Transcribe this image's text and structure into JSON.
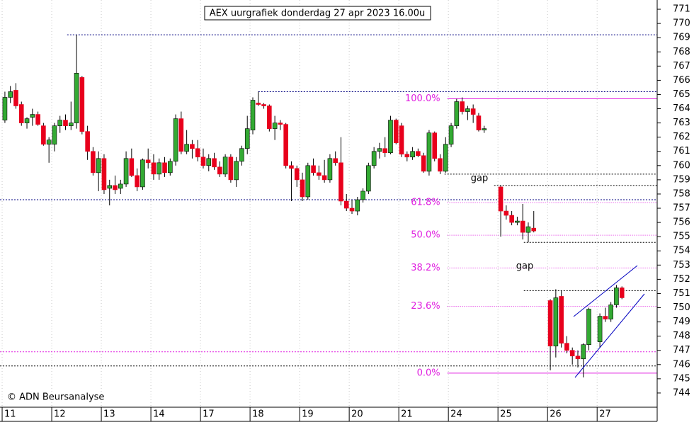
{
  "chart_data": {
    "type": "candlestick",
    "title": "AEX uurgrafiek donderdag 27 apr 2023 16.00u",
    "credit": "© ADN Beursanalyse",
    "annotations": [
      "gap",
      "gap"
    ],
    "up_color": "#33aa33",
    "down_color": "#e8001c",
    "x": [
      0.5,
      1.5,
      2.5,
      3.5,
      4.5,
      5.5,
      6.5,
      7.5,
      8.5,
      9.5,
      10.5,
      11.5,
      12.5,
      13.5,
      14.5,
      15.5,
      16.5,
      17.5,
      18.5,
      19.5,
      20.5,
      21.5,
      22.5,
      23.5,
      24.5,
      25.5,
      26.5,
      27.5,
      28.5,
      29.5,
      30.5,
      31.5,
      32.5,
      33.5,
      34.5,
      35.5,
      36.5,
      37.5,
      38.5,
      39.5,
      40.5,
      41.5,
      42.5,
      43.5,
      44.5,
      45.5,
      46.5,
      47.5,
      48.5,
      49.5,
      50.5,
      51.5,
      52.5,
      53.5,
      54.5,
      55.5,
      56.5,
      57.5,
      58.5,
      59.5,
      60.5,
      61.5,
      62.5,
      63.5,
      64.5,
      65.5,
      66.5,
      67.5,
      68.5,
      69.5,
      70.5,
      71.5,
      72.5,
      73.5,
      74.5,
      75.5,
      76.5,
      77.5,
      78.5,
      79.5,
      80.5,
      81.5,
      82.5,
      83.5,
      84.5,
      85.5,
      86.5,
      87.5,
      90.5,
      91.5,
      92.5,
      93.5,
      94.5,
      95.5,
      96.5,
      99.5,
      100.5,
      101.5,
      102.5,
      103.5,
      104.5,
      105.5,
      106.5,
      108.5,
      109.5,
      110.5,
      111.5,
      112.5
    ],
    "open": [
      763.2,
      764.8,
      765.3,
      764.3,
      763.0,
      763.4,
      763.6,
      762.8,
      761.5,
      761.5,
      762.8,
      763.2,
      762.8,
      763.0,
      766.2,
      762.4,
      761.0,
      759.5,
      760.5,
      758.4,
      758.6,
      758.4,
      758.7,
      760.5,
      759.3,
      758.5,
      760.4,
      760.2,
      759.4,
      760.2,
      759.5,
      760.3,
      763.3,
      761.0,
      761.5,
      761.2,
      760.6,
      760.0,
      760.5,
      759.9,
      759.4,
      760.6,
      759.0,
      760.3,
      761.2,
      762.5,
      764.4,
      764.3,
      764.2,
      762.6,
      763.0,
      762.9,
      760.0,
      759.8,
      759.0,
      757.8,
      760.0,
      759.5,
      759.3,
      759.0,
      760.5,
      760.2,
      757.5,
      757.0,
      756.8,
      757.6,
      758.2,
      760.0,
      761.0,
      761.2,
      760.9,
      763.2,
      762.8,
      760.8,
      760.6,
      761.0,
      760.7,
      759.6,
      762.3,
      760.5,
      759.6,
      761.5,
      762.8,
      764.5,
      763.8,
      764.0,
      763.5,
      762.5,
      758.5,
      756.8,
      756.5,
      756.0,
      756.1,
      755.3,
      755.6,
      750.5,
      747.3,
      750.8,
      747.5,
      747.0,
      746.6,
      746.4,
      747.4,
      747.6,
      749.4,
      749.2,
      750.2,
      751.4
    ],
    "high": [
      765.2,
      765.6,
      765.8,
      764.5,
      763.4,
      764.0,
      763.8,
      763.0,
      762.0,
      763.0,
      763.5,
      763.6,
      764.5,
      769.2,
      766.3,
      762.8,
      761.3,
      761.0,
      760.8,
      759.0,
      759.3,
      759.0,
      761.0,
      761.2,
      759.8,
      760.5,
      761.2,
      760.8,
      760.5,
      760.6,
      760.5,
      763.6,
      763.8,
      762.5,
      761.8,
      761.8,
      761.2,
      760.8,
      760.9,
      760.3,
      760.8,
      760.8,
      760.6,
      761.4,
      763.5,
      764.8,
      765.2,
      764.4,
      764.3,
      763.5,
      763.2,
      763.0,
      760.3,
      760.0,
      759.5,
      760.2,
      760.5,
      760.0,
      760.4,
      760.8,
      761.0,
      762.0,
      758.0,
      757.6,
      757.8,
      758.4,
      760.2,
      761.3,
      761.6,
      762.0,
      763.5,
      763.3,
      763.0,
      761.0,
      761.3,
      761.2,
      760.9,
      762.5,
      762.4,
      760.8,
      762.0,
      763.0,
      764.7,
      764.8,
      764.2,
      764.3,
      763.7,
      762.8,
      758.6,
      757.2,
      756.8,
      756.4,
      757.3,
      756.0,
      756.8,
      750.6,
      751.3,
      751.2,
      748.0,
      747.2,
      747.0,
      747.5,
      750.0,
      749.6,
      750.0,
      750.4,
      751.6,
      751.5
    ],
    "low": [
      763.0,
      764.4,
      764.0,
      762.8,
      762.6,
      762.8,
      762.8,
      761.4,
      760.2,
      761.0,
      762.3,
      762.5,
      762.5,
      762.6,
      762.2,
      760.4,
      759.3,
      758.2,
      758.0,
      757.2,
      758.0,
      758.0,
      758.5,
      759.2,
      758.2,
      758.3,
      759.8,
      759.0,
      759.0,
      759.2,
      759.3,
      760.0,
      760.8,
      760.8,
      760.5,
      760.3,
      759.8,
      759.6,
      759.7,
      759.2,
      759.2,
      758.8,
      758.5,
      760.0,
      760.8,
      762.2,
      764.2,
      764.0,
      762.4,
      761.8,
      762.5,
      759.8,
      757.5,
      758.5,
      757.5,
      757.6,
      759.3,
      759.0,
      758.8,
      758.8,
      760.0,
      757.2,
      756.8,
      756.6,
      756.5,
      757.4,
      758.0,
      759.8,
      760.5,
      760.6,
      760.8,
      761.5,
      760.6,
      760.3,
      760.4,
      760.6,
      759.5,
      759.3,
      760.3,
      759.4,
      759.5,
      761.3,
      762.6,
      763.6,
      763.2,
      763.0,
      762.4,
      762.3,
      755.0,
      756.2,
      755.8,
      755.8,
      754.8,
      754.6,
      755.3,
      745.6,
      746.5,
      747.2,
      746.8,
      746.0,
      745.8,
      745.1,
      747.0,
      747.2,
      749.0,
      749.0,
      750.0,
      750.6
    ],
    "close": [
      764.8,
      765.2,
      764.2,
      763.0,
      763.3,
      763.6,
      762.9,
      761.5,
      761.8,
      762.8,
      763.2,
      762.8,
      763.0,
      766.5,
      762.4,
      761.0,
      759.5,
      760.5,
      758.3,
      758.6,
      758.3,
      758.7,
      760.5,
      759.3,
      758.5,
      760.4,
      760.2,
      759.4,
      760.2,
      759.5,
      760.3,
      763.3,
      761.0,
      761.5,
      761.2,
      760.6,
      760.0,
      760.5,
      759.9,
      759.4,
      760.6,
      759.0,
      760.3,
      761.2,
      762.6,
      764.6,
      764.3,
      764.2,
      762.6,
      763.0,
      762.9,
      760.0,
      759.8,
      759.0,
      757.8,
      760.0,
      759.5,
      759.3,
      759.0,
      760.5,
      760.2,
      757.5,
      757.0,
      756.8,
      757.6,
      758.2,
      760.0,
      761.0,
      761.2,
      760.9,
      763.2,
      761.6,
      760.8,
      760.6,
      761.0,
      760.7,
      759.6,
      762.3,
      760.5,
      759.6,
      761.5,
      762.8,
      764.5,
      763.8,
      764.0,
      763.6,
      762.5,
      762.6,
      756.8,
      756.5,
      756.0,
      756.1,
      755.3,
      755.7,
      755.4,
      747.3,
      750.7,
      747.5,
      747.0,
      746.6,
      746.4,
      747.4,
      749.9,
      749.4,
      749.2,
      750.2,
      751.4,
      750.7
    ],
    "levels": [
      {
        "value": 769.2,
        "x_start": 11.8,
        "color": "#000080"
      },
      {
        "value": 765.2,
        "x_start": 46.5,
        "color": "#000080"
      },
      {
        "value": 759.4,
        "x_start": 80.3,
        "color": "#000000"
      },
      {
        "value": 758.6,
        "x_start": 89.3,
        "color": "#000000"
      },
      {
        "value": 757.6,
        "x_start": -0.39,
        "color": "#000080"
      },
      {
        "value": 754.6,
        "x_start": 94.7,
        "color": "#000000"
      },
      {
        "value": 751.2,
        "x_start": 94.7,
        "color": "#000000"
      },
      {
        "value": 746.9,
        "x_start": -0.39,
        "color": "#e020e0"
      },
      {
        "value": 745.9,
        "x_start": -0.39,
        "color": "#000000"
      }
    ],
    "fib_levels": [
      {
        "value": 764.7,
        "label": "100.0%",
        "style": "solid"
      },
      {
        "value": 757.4,
        "label": "61.8%",
        "style": "dotted"
      },
      {
        "value": 755.1,
        "label": "50.0%",
        "style": "dotted"
      },
      {
        "value": 752.8,
        "label": "38.2%",
        "style": "dotted"
      },
      {
        "value": 750.1,
        "label": "23.6%",
        "style": "dotted"
      },
      {
        "value": 745.4,
        "label": "0.0%",
        "style": "solid"
      }
    ],
    "fib_x_start": 80.8,
    "fib_color": "#e020e0",
    "xlim": [
      -0.39,
      118.9
    ],
    "xticks": [
      {
        "value": 0,
        "label": "11"
      },
      {
        "value": 9,
        "label": "12"
      },
      {
        "value": 18,
        "label": "13"
      },
      {
        "value": 27,
        "label": "14"
      },
      {
        "value": 36,
        "label": "17"
      },
      {
        "value": 45,
        "label": "18"
      },
      {
        "value": 54,
        "label": "19"
      },
      {
        "value": 63,
        "label": "20"
      },
      {
        "value": 72,
        "label": "21"
      },
      {
        "value": 81,
        "label": "24"
      },
      {
        "value": 90,
        "label": "25"
      },
      {
        "value": 99,
        "label": "26"
      },
      {
        "value": 108,
        "label": "27"
      }
    ],
    "ylim": [
      743.0,
      771.65
    ],
    "yticks": [
      744,
      745,
      746,
      747,
      748,
      749,
      750,
      751,
      752,
      753,
      754,
      755,
      756,
      757,
      758,
      759,
      760,
      761,
      762,
      763,
      764,
      765,
      766,
      767,
      768,
      769,
      770,
      771
    ],
    "grid": true
  }
}
